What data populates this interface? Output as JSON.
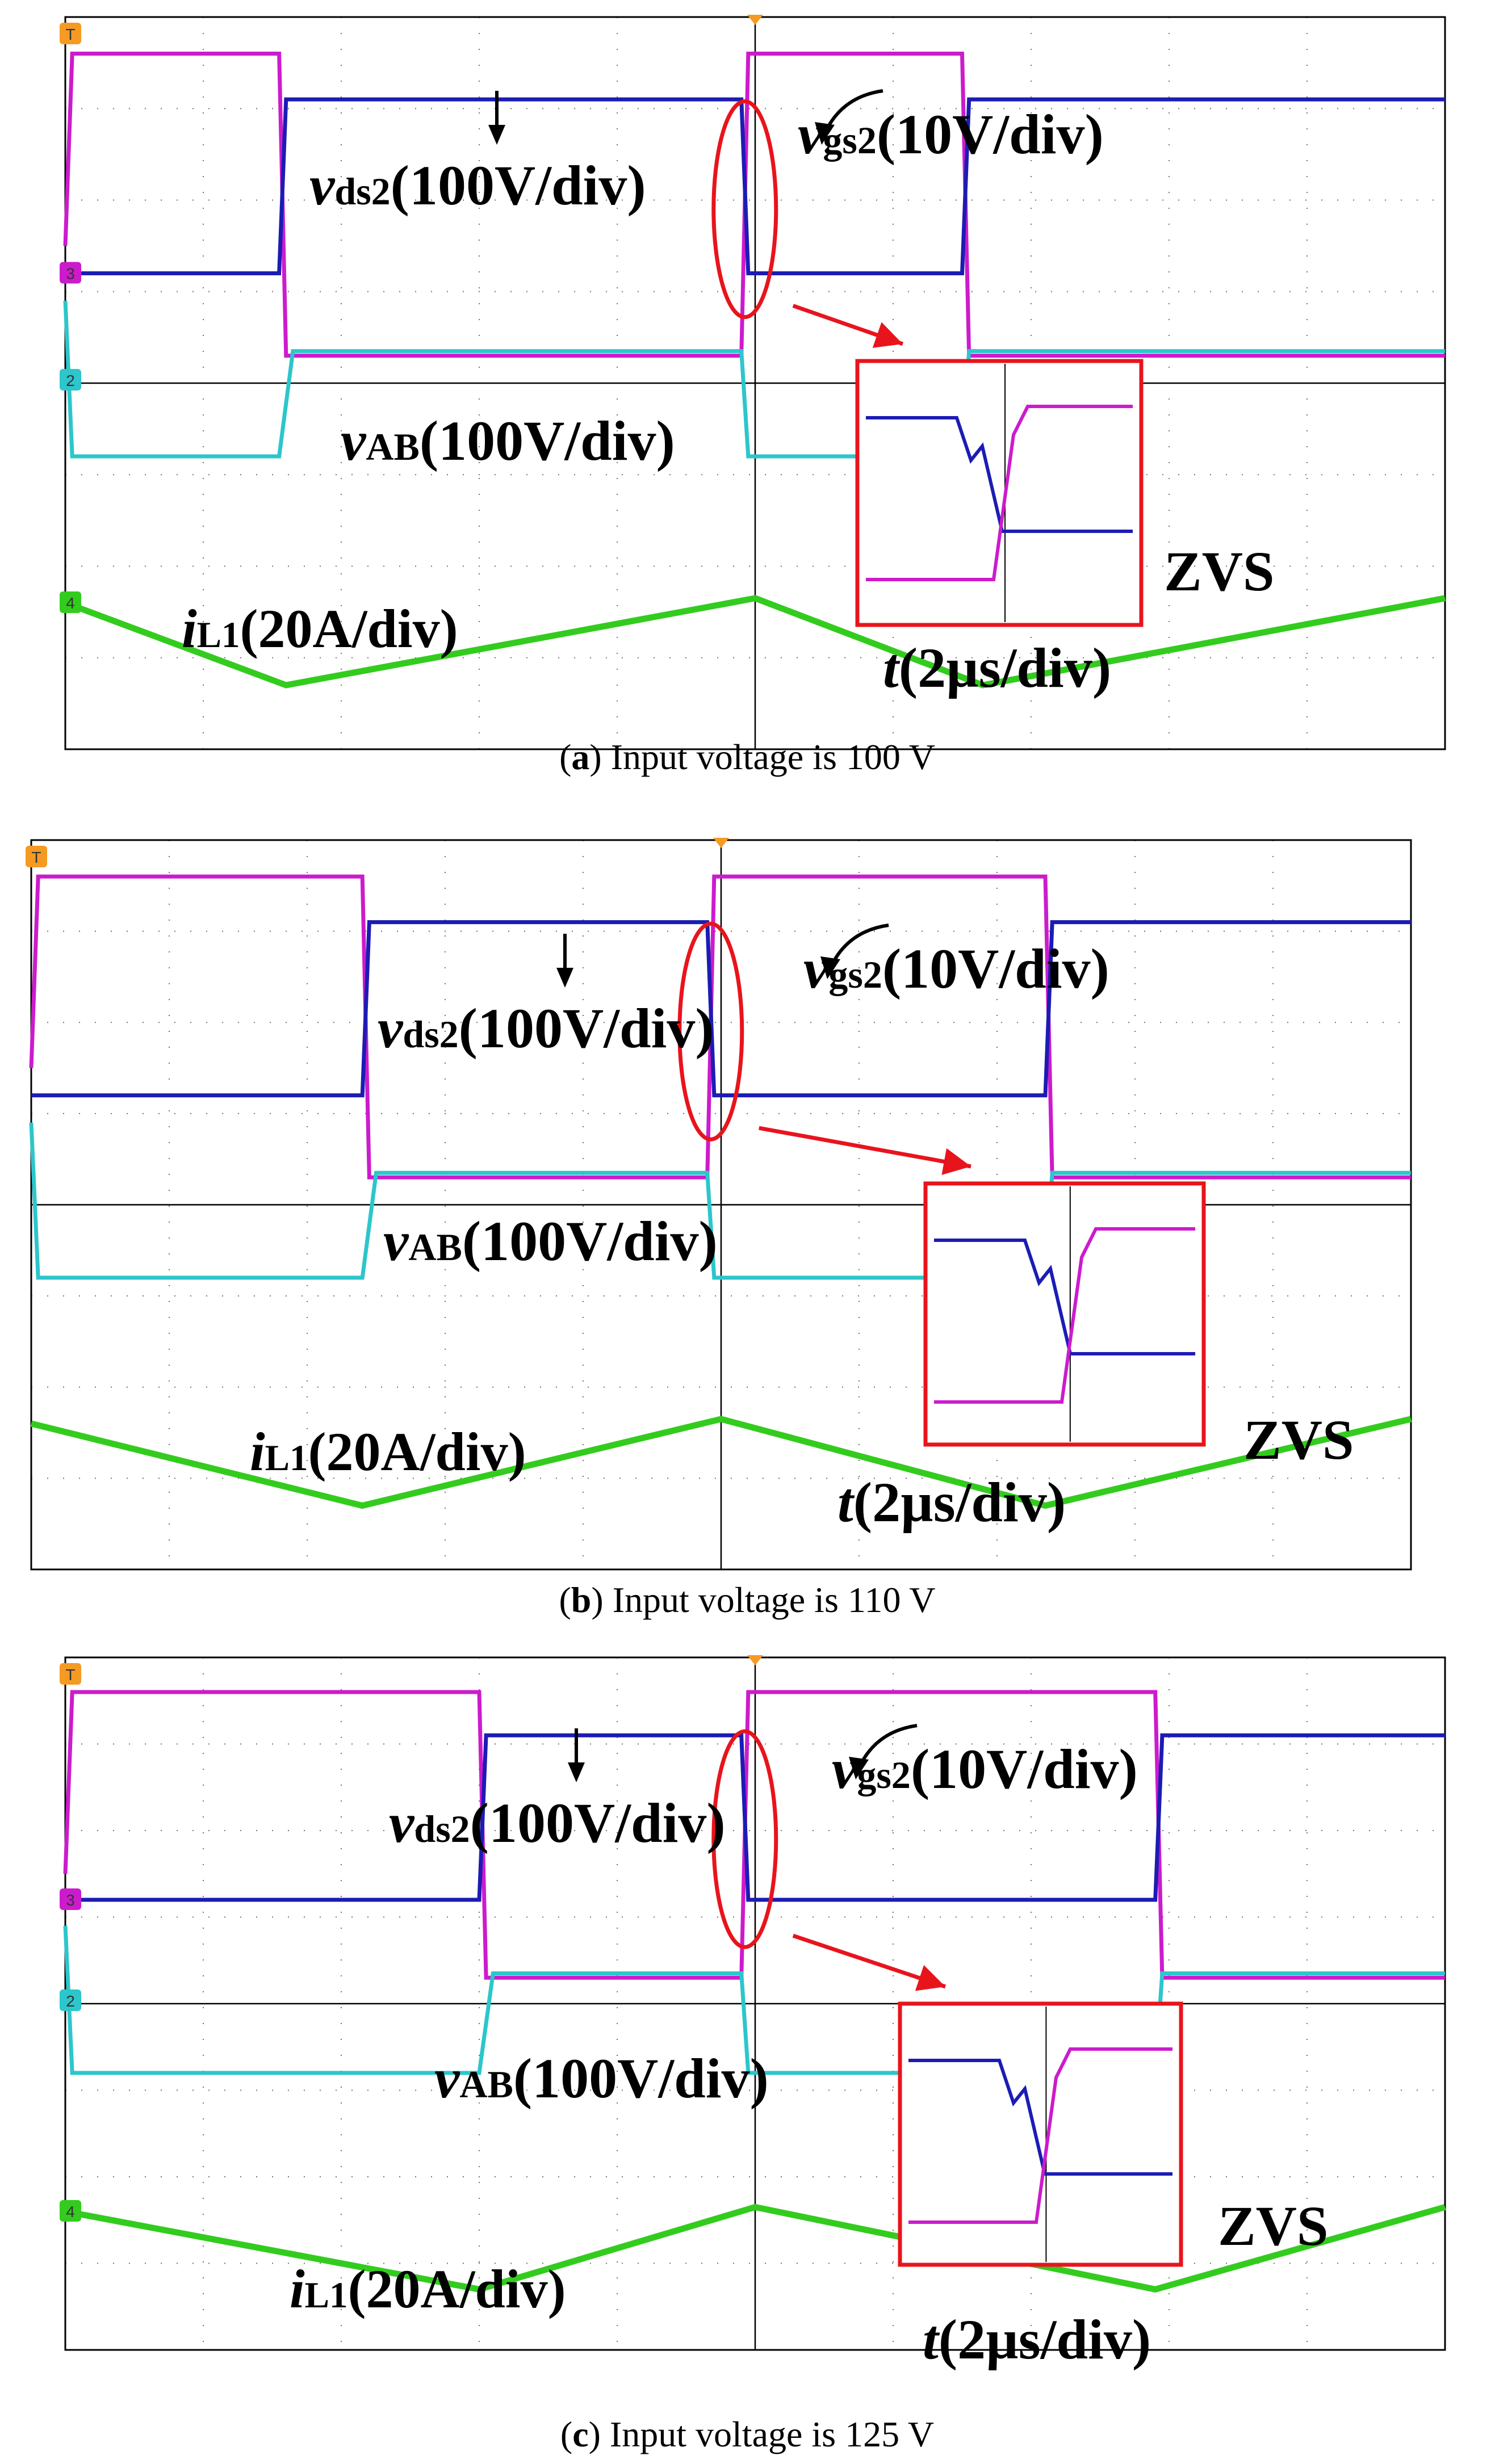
{
  "colors": {
    "vgs2": "#cc1bcc",
    "vds2": "#1c1cb4",
    "vAB": "#2cc6cc",
    "iL1": "#33cc1e",
    "highlight": "#e8141c",
    "grid": "#000000",
    "channel_marker_1": "#f59a23"
  },
  "chart_data": [
    {
      "type": "line",
      "caption_letter": "a",
      "caption_text": "Input voltage is 100 V",
      "labels": {
        "vds2": {
          "sym": "v",
          "sub": "ds2",
          "scale": "(100V/div)"
        },
        "vgs2": {
          "sym": "v",
          "sub": "gs2",
          "scale": "(10V/div)"
        },
        "vAB": {
          "sym": "v",
          "sub": "AB",
          "scale": "(100V/div)"
        },
        "iL1": {
          "sym": "i",
          "sub": "L1",
          "scale": "(20A/div)"
        },
        "time": {
          "sym": "t",
          "scale": "(2µs/div)"
        },
        "zvs": "ZVS"
      },
      "channel_markers": [
        "T",
        "3",
        "2",
        "4"
      ],
      "x_range": [
        0,
        20
      ],
      "x_unit": "µs",
      "grid": true,
      "series": [
        {
          "key": "vgs2",
          "x": [
            0,
            0.1,
            3.1,
            3.2,
            9.8,
            9.9,
            13.0,
            13.1,
            20.0
          ],
          "y": [
            1.5,
            3.6,
            3.6,
            0.3,
            0.3,
            3.6,
            3.6,
            0.3,
            0.3
          ]
        },
        {
          "key": "vds2",
          "x": [
            0,
            3.1,
            3.2,
            9.8,
            9.9,
            13.0,
            13.1,
            20.0
          ],
          "y": [
            1.2,
            1.2,
            3.1,
            3.1,
            1.2,
            1.2,
            3.1,
            3.1
          ]
        },
        {
          "key": "vAB",
          "x": [
            0,
            0.1,
            3.1,
            3.3,
            9.8,
            9.9,
            13.0,
            13.1,
            20.0
          ],
          "y": [
            0.9,
            -0.8,
            -0.8,
            0.35,
            0.35,
            -0.8,
            -0.8,
            0.35,
            0.35
          ]
        },
        {
          "key": "iL1",
          "x": [
            0,
            3.2,
            10.0,
            13.3,
            20.0
          ],
          "y": [
            -2.4,
            -3.3,
            -2.35,
            -3.3,
            -2.35
          ]
        }
      ]
    },
    {
      "type": "line",
      "caption_letter": "b",
      "caption_text": "Input voltage is 110 V",
      "labels": {
        "vds2": {
          "sym": "v",
          "sub": "ds2",
          "scale": "(100V/div)"
        },
        "vgs2": {
          "sym": "v",
          "sub": "gs2",
          "scale": "(10V/div)"
        },
        "vAB": {
          "sym": "v",
          "sub": "AB",
          "scale": "(100V/div)"
        },
        "iL1": {
          "sym": "i",
          "sub": "L1",
          "scale": "(20A/div)"
        },
        "time": {
          "sym": "t",
          "scale": "(2µs/div)"
        },
        "zvs": "ZVS"
      },
      "channel_markers": [
        "T"
      ],
      "x_range": [
        0,
        20
      ],
      "x_unit": "µs",
      "grid": true,
      "series": [
        {
          "key": "vgs2",
          "x": [
            0,
            0.1,
            4.8,
            4.9,
            9.8,
            9.9,
            14.7,
            14.8,
            20.0
          ],
          "y": [
            1.5,
            3.6,
            3.6,
            0.3,
            0.3,
            3.6,
            3.6,
            0.3,
            0.3
          ]
        },
        {
          "key": "vds2",
          "x": [
            0,
            4.8,
            4.9,
            9.8,
            9.9,
            14.7,
            14.8,
            20.0
          ],
          "y": [
            1.2,
            1.2,
            3.1,
            3.1,
            1.2,
            1.2,
            3.1,
            3.1
          ]
        },
        {
          "key": "vAB",
          "x": [
            0,
            0.1,
            4.8,
            5.0,
            9.8,
            9.9,
            14.7,
            14.8,
            20.0
          ],
          "y": [
            0.9,
            -0.8,
            -0.8,
            0.35,
            0.35,
            -0.8,
            -0.8,
            0.35,
            0.35
          ]
        },
        {
          "key": "iL1",
          "x": [
            0,
            4.8,
            10.0,
            14.7,
            20.0
          ],
          "y": [
            -2.4,
            -3.3,
            -2.35,
            -3.3,
            -2.35
          ]
        }
      ]
    },
    {
      "type": "line",
      "caption_letter": "c",
      "caption_text": "Input voltage is 125 V",
      "labels": {
        "vds2": {
          "sym": "v",
          "sub": "ds2",
          "scale": "(100V/div)"
        },
        "vgs2": {
          "sym": "v",
          "sub": "gs2",
          "scale": "(10V/div)"
        },
        "vAB": {
          "sym": "v",
          "sub": "AB",
          "scale": "(100V/div)"
        },
        "iL1": {
          "sym": "i",
          "sub": "L1",
          "scale": "(20A/div)"
        },
        "time": {
          "sym": "t",
          "scale": "(2µs/div)"
        },
        "zvs": "ZVS"
      },
      "channel_markers": [
        "T",
        "3",
        "2",
        "4"
      ],
      "x_range": [
        0,
        20
      ],
      "x_unit": "µs",
      "grid": true,
      "series": [
        {
          "key": "vgs2",
          "x": [
            0,
            0.1,
            6.0,
            6.1,
            9.8,
            9.9,
            15.8,
            15.9,
            20.0
          ],
          "y": [
            1.5,
            3.6,
            3.6,
            0.3,
            0.3,
            3.6,
            3.6,
            0.3,
            0.3
          ]
        },
        {
          "key": "vds2",
          "x": [
            0,
            6.0,
            6.1,
            9.8,
            9.9,
            15.8,
            15.9,
            20.0
          ],
          "y": [
            1.2,
            1.2,
            3.1,
            3.1,
            1.2,
            1.2,
            3.1,
            3.1
          ]
        },
        {
          "key": "vAB",
          "x": [
            0,
            0.1,
            6.0,
            6.2,
            9.8,
            9.9,
            15.8,
            15.9,
            20.0
          ],
          "y": [
            0.9,
            -0.8,
            -0.8,
            0.35,
            0.35,
            -0.8,
            -0.8,
            0.35,
            0.35
          ]
        },
        {
          "key": "iL1",
          "x": [
            0,
            6.0,
            10.0,
            15.8,
            20.0
          ],
          "y": [
            -2.4,
            -3.3,
            -2.35,
            -3.3,
            -2.35
          ]
        }
      ]
    }
  ]
}
